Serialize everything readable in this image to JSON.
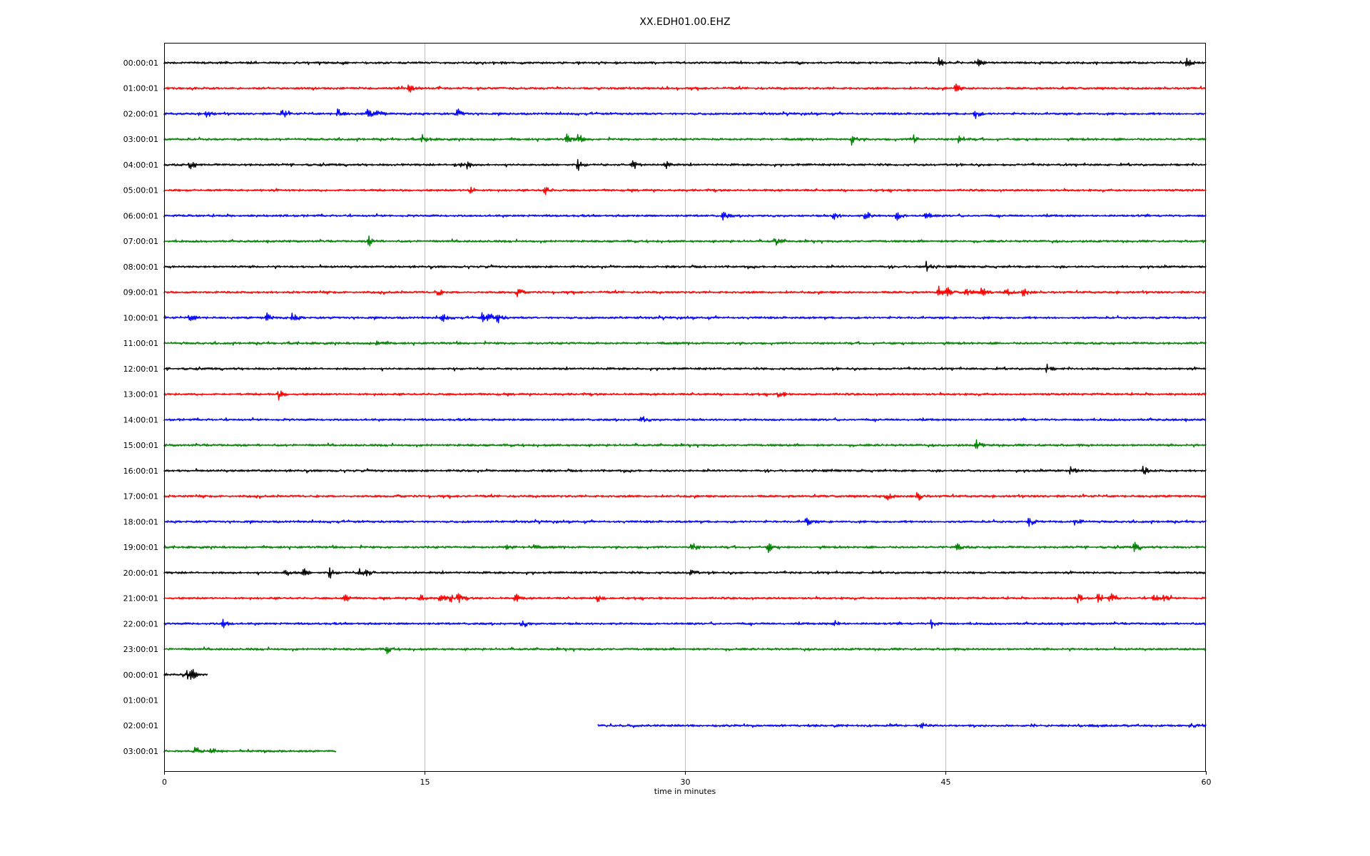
{
  "chart_data": {
    "type": "line",
    "title": "XX.EDH01.00.EHZ",
    "xlabel": "time in minutes",
    "ylabel": "",
    "xlim": [
      0,
      60
    ],
    "xticks": [
      "0",
      "15",
      "30",
      "45",
      "60"
    ],
    "grid": "vertical lines at x ticks",
    "row_colors": [
      "#000000",
      "#ff0000",
      "#0000ff",
      "#008000"
    ],
    "rows": [
      {
        "label": "00:00:01",
        "start": 0,
        "end": 60,
        "events": [
          44.6,
          46.8,
          58.9
        ]
      },
      {
        "label": "01:00:01",
        "start": 0,
        "end": 60,
        "events": [
          14.1,
          45.6
        ]
      },
      {
        "label": "02:00:01",
        "start": 0,
        "end": 60,
        "events": [
          2.4,
          6.8,
          10.0,
          11.7,
          12.3,
          16.9,
          46.7
        ]
      },
      {
        "label": "03:00:01",
        "start": 0,
        "end": 60,
        "events": [
          14.9,
          23.2,
          23.8,
          39.6,
          43.1,
          45.8
        ]
      },
      {
        "label": "04:00:01",
        "start": 0,
        "end": 60,
        "events": [
          1.5,
          16.8,
          17.4,
          23.8,
          27.0,
          28.9
        ]
      },
      {
        "label": "05:00:01",
        "start": 0,
        "end": 60,
        "events": [
          17.6,
          21.9
        ]
      },
      {
        "label": "06:00:01",
        "start": 0,
        "end": 60,
        "events": [
          32.2,
          38.5,
          40.4,
          42.2,
          43.9
        ]
      },
      {
        "label": "07:00:01",
        "start": 0,
        "end": 60,
        "events": [
          11.8,
          35.2
        ]
      },
      {
        "label": "08:00:01",
        "start": 0,
        "end": 60,
        "events": [
          43.9
        ]
      },
      {
        "label": "09:00:01",
        "start": 0,
        "end": 60,
        "events": [
          15.7,
          20.3,
          44.6,
          45.1,
          46.2,
          47.1,
          48.5,
          49.5
        ]
      },
      {
        "label": "10:00:01",
        "start": 0,
        "end": 60,
        "events": [
          1.5,
          5.9,
          7.4,
          16.0,
          18.3,
          18.7,
          19.2
        ]
      },
      {
        "label": "11:00:01",
        "start": 0,
        "end": 60,
        "events": [
          12.3
        ]
      },
      {
        "label": "12:00:01",
        "start": 0,
        "end": 60,
        "events": [
          50.8
        ]
      },
      {
        "label": "13:00:01",
        "start": 0,
        "end": 60,
        "events": [
          6.6,
          35.4
        ]
      },
      {
        "label": "14:00:01",
        "start": 0,
        "end": 60,
        "events": [
          27.5
        ]
      },
      {
        "label": "15:00:01",
        "start": 0,
        "end": 60,
        "events": [
          46.8
        ]
      },
      {
        "label": "16:00:01",
        "start": 0,
        "end": 60,
        "events": [
          52.2,
          56.4
        ]
      },
      {
        "label": "17:00:01",
        "start": 0,
        "end": 60,
        "events": [
          41.6,
          43.4
        ]
      },
      {
        "label": "18:00:01",
        "start": 0,
        "end": 60,
        "events": [
          37.0,
          49.8,
          52.5
        ]
      },
      {
        "label": "19:00:01",
        "start": 0,
        "end": 60,
        "events": [
          19.7,
          21.1,
          30.4,
          34.8,
          45.7,
          55.9
        ]
      },
      {
        "label": "20:00:01",
        "start": 0,
        "end": 60,
        "events": [
          7.0,
          8.0,
          9.5,
          11.3,
          11.6,
          30.3
        ]
      },
      {
        "label": "21:00:01",
        "start": 0,
        "end": 60,
        "events": [
          10.4,
          14.7,
          15.9,
          16.5,
          16.9,
          20.2,
          25.0,
          52.6,
          53.8,
          54.5,
          57.0,
          57.6
        ]
      },
      {
        "label": "22:00:01",
        "start": 0,
        "end": 60,
        "events": [
          3.4,
          20.6,
          38.6,
          44.2
        ]
      },
      {
        "label": "23:00:01",
        "start": 0,
        "end": 60,
        "events": [
          12.8
        ]
      },
      {
        "label": "00:00:01",
        "start": 0,
        "end": 2.5,
        "events": [
          1.3,
          1.6
        ]
      },
      {
        "label": "01:00:01",
        "start": null,
        "end": null,
        "events": []
      },
      {
        "label": "02:00:01",
        "start": 25.0,
        "end": 60,
        "events": [
          43.6,
          59.1
        ]
      },
      {
        "label": "03:00:01",
        "start": 0,
        "end": 9.9,
        "events": [
          1.8,
          2.7
        ]
      }
    ]
  }
}
